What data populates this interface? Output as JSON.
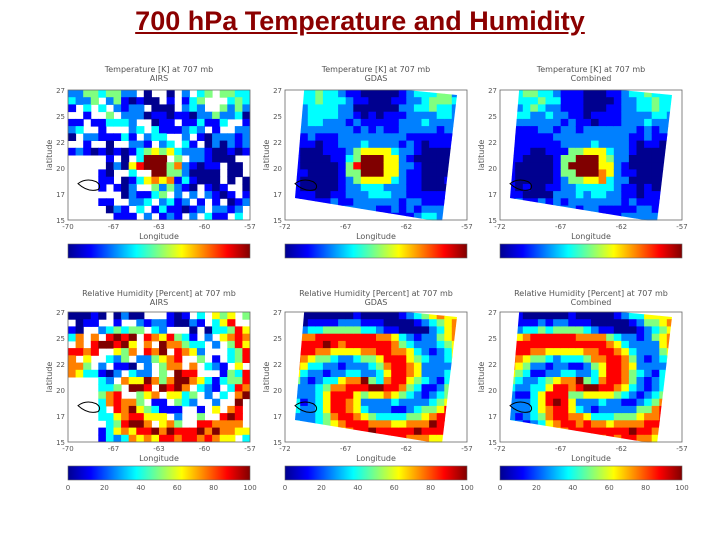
{
  "title": "700 hPa Temperature and Humidity",
  "colors": {
    "title": "#8b0000",
    "jet": [
      "#00008f",
      "#0000ff",
      "#0080ff",
      "#00ffff",
      "#80ff80",
      "#ffff00",
      "#ff8000",
      "#ff0000",
      "#800000"
    ]
  },
  "chart_data": [
    {
      "type": "heatmap",
      "row": 0,
      "col": 0,
      "title": "Temperature [K] at 707 mb",
      "subtitle": "AIRS",
      "xlabel": "Longitude",
      "ylabel": "latitude",
      "xticks": [
        "-70",
        "-67",
        "-63",
        "-60",
        "-57"
      ],
      "yticks": [
        "27",
        "25",
        "22",
        "20",
        "17",
        "15"
      ],
      "colorbar_ticks": []
    },
    {
      "type": "heatmap",
      "row": 0,
      "col": 1,
      "title": "Temperature [K] at 707 mb",
      "subtitle": "GDAS",
      "xlabel": "Longitude",
      "ylabel": "latitude",
      "xticks": [
        "-72",
        "-67",
        "-62",
        "-57"
      ],
      "yticks": [
        "27",
        "25",
        "22",
        "20",
        "17",
        "15"
      ],
      "colorbar_ticks": []
    },
    {
      "type": "heatmap",
      "row": 0,
      "col": 2,
      "title": "Temperature [K] at 707 mb",
      "subtitle": "Combined",
      "xlabel": "Longitude",
      "ylabel": "latitude",
      "xticks": [
        "-72",
        "-67",
        "-62",
        "-57"
      ],
      "yticks": [
        "27",
        "25",
        "22",
        "20",
        "17",
        "15"
      ],
      "colorbar_ticks": []
    },
    {
      "type": "heatmap",
      "row": 1,
      "col": 0,
      "title": "Relative Humidity [Percent] at 707 mb",
      "subtitle": "AIRS",
      "xlabel": "Longitude",
      "ylabel": "latitude",
      "xticks": [
        "-70",
        "-67",
        "-63",
        "-60",
        "-57"
      ],
      "yticks": [
        "27",
        "25",
        "22",
        "20",
        "17",
        "15"
      ],
      "colorbar_ticks": [
        "0",
        "20",
        "40",
        "60",
        "80",
        "100"
      ]
    },
    {
      "type": "heatmap",
      "row": 1,
      "col": 1,
      "title": "Relative Humidity [Percent] at 707 mb",
      "subtitle": "GDAS",
      "xlabel": "Longitude",
      "ylabel": "latitude",
      "xticks": [
        "-72",
        "-67",
        "-62",
        "-57"
      ],
      "yticks": [
        "27",
        "25",
        "22",
        "20",
        "17",
        "15"
      ],
      "colorbar_ticks": [
        "0",
        "20",
        "40",
        "60",
        "80",
        "100"
      ]
    },
    {
      "type": "heatmap",
      "row": 1,
      "col": 2,
      "title": "Relative Humidity [Percent] at 707 mb",
      "subtitle": "Combined",
      "xlabel": "Longitude",
      "ylabel": "latitude",
      "xticks": [
        "-72",
        "-67",
        "-62",
        "-57"
      ],
      "yticks": [
        "27",
        "25",
        "22",
        "20",
        "17",
        "15"
      ],
      "colorbar_ticks": [
        "0",
        "20",
        "40",
        "60",
        "80",
        "100"
      ]
    }
  ]
}
